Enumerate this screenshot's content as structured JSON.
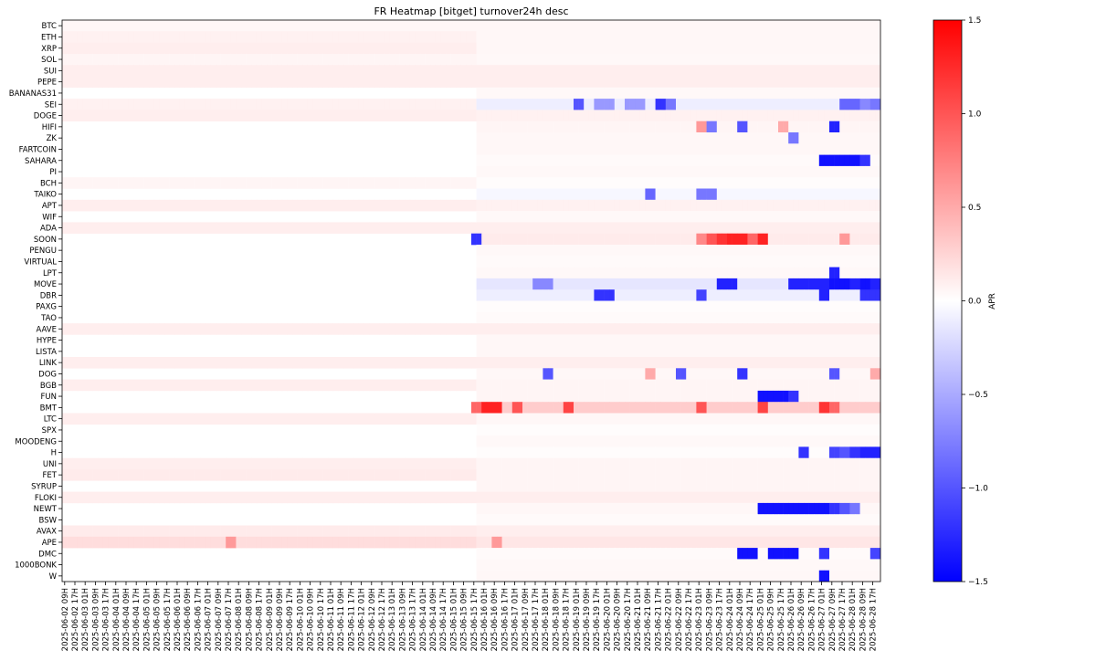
{
  "chart_data": {
    "type": "heatmap",
    "title": "FR Heatmap [bitget] turnover24h desc",
    "colorbar_label": "APR",
    "colorbar_ticks": [
      "1.5",
      "1.0",
      "0.5",
      "0.0",
      "−0.5",
      "−1.0",
      "−1.5"
    ],
    "value_range": [
      -1.5,
      1.5
    ],
    "colormap": "bwr",
    "colors": {
      "low": "#0000ff",
      "mid": "#ffffff",
      "high": "#ff0000"
    },
    "rows": [
      "BTC",
      "ETH",
      "XRP",
      "SOL",
      "SUI",
      "PEPE",
      "BANANAS31",
      "SEI",
      "DOGE",
      "HIFI",
      "ZK",
      "FARTCOIN",
      "SAHARA",
      "PI",
      "BCH",
      "TAIKO",
      "APT",
      "WIF",
      "ADA",
      "SOON",
      "PENGU",
      "VIRTUAL",
      "LPT",
      "MOVE",
      "DBR",
      "PAXG",
      "TAO",
      "AAVE",
      "HYPE",
      "LISTA",
      "LINK",
      "DOG",
      "BGB",
      "FUN",
      "BMT",
      "LTC",
      "SPX",
      "MOODENG",
      "H",
      "UNI",
      "FET",
      "SYRUP",
      "FLOKI",
      "NEWT",
      "BSW",
      "AVAX",
      "APE",
      "DMC",
      "1000BONK",
      "W"
    ],
    "x_tick_labels": [
      "2025-06-02 09H",
      "2025-06-02 17H",
      "2025-06-03 01H",
      "2025-06-03 09H",
      "2025-06-03 17H",
      "2025-06-04 01H",
      "2025-06-04 09H",
      "2025-06-04 17H",
      "2025-06-05 01H",
      "2025-06-05 09H",
      "2025-06-05 17H",
      "2025-06-06 01H",
      "2025-06-06 09H",
      "2025-06-06 17H",
      "2025-06-07 01H",
      "2025-06-07 09H",
      "2025-06-07 17H",
      "2025-06-08 01H",
      "2025-06-08 09H",
      "2025-06-08 17H",
      "2025-06-09 01H",
      "2025-06-09 09H",
      "2025-06-09 17H",
      "2025-06-10 01H",
      "2025-06-10 09H",
      "2025-06-10 17H",
      "2025-06-11 01H",
      "2025-06-11 09H",
      "2025-06-11 17H",
      "2025-06-12 01H",
      "2025-06-12 09H",
      "2025-06-12 17H",
      "2025-06-13 01H",
      "2025-06-13 09H",
      "2025-06-13 17H",
      "2025-06-14 01H",
      "2025-06-14 09H",
      "2025-06-14 17H",
      "2025-06-15 01H",
      "2025-06-15 09H",
      "2025-06-15 17H",
      "2025-06-16 01H",
      "2025-06-16 09H",
      "2025-06-16 17H",
      "2025-06-17 01H",
      "2025-06-17 09H",
      "2025-06-17 17H",
      "2025-06-18 01H",
      "2025-06-18 09H",
      "2025-06-18 17H",
      "2025-06-19 01H",
      "2025-06-19 09H",
      "2025-06-19 17H",
      "2025-06-20 01H",
      "2025-06-20 09H",
      "2025-06-20 17H",
      "2025-06-21 01H",
      "2025-06-21 09H",
      "2025-06-21 17H",
      "2025-06-22 01H",
      "2025-06-22 09H",
      "2025-06-22 17H",
      "2025-06-23 01H",
      "2025-06-23 09H",
      "2025-06-23 17H",
      "2025-06-24 01H",
      "2025-06-24 09H",
      "2025-06-24 17H",
      "2025-06-25 01H",
      "2025-06-25 09H",
      "2025-06-25 17H",
      "2025-06-26 01H",
      "2025-06-26 09H",
      "2025-06-26 17H",
      "2025-06-27 01H",
      "2025-06-27 09H",
      "2025-06-27 17H",
      "2025-06-28 01H",
      "2025-06-28 09H",
      "2025-06-28 17H"
    ],
    "row_profiles": [
      {
        "row": "BTC",
        "early": 0.05,
        "late": 0.05
      },
      {
        "row": "ETH",
        "early": 0.08,
        "late": 0.05
      },
      {
        "row": "XRP",
        "early": 0.1,
        "late": 0.05
      },
      {
        "row": "SOL",
        "early": 0.06,
        "late": 0.04
      },
      {
        "row": "SUI",
        "early": 0.1,
        "late": 0.1
      },
      {
        "row": "PEPE",
        "early": 0.1,
        "late": 0.1
      },
      {
        "row": "BANANAS31",
        "early": null,
        "late": 0.04
      },
      {
        "row": "SEI",
        "early": 0.08,
        "late": -0.1
      },
      {
        "row": "DOGE",
        "early": 0.1,
        "late": 0.08
      },
      {
        "row": "HIFI",
        "early": null,
        "late": 0.06
      },
      {
        "row": "ZK",
        "early": null,
        "late": 0.05
      },
      {
        "row": "FARTCOIN",
        "early": null,
        "late": 0.05
      },
      {
        "row": "SAHARA",
        "early": null,
        "late": 0.03
      },
      {
        "row": "PI",
        "early": null,
        "late": 0.04
      },
      {
        "row": "BCH",
        "early": 0.06,
        "late": 0.02
      },
      {
        "row": "TAIKO",
        "early": null,
        "late": -0.05
      },
      {
        "row": "APT",
        "early": 0.1,
        "late": 0.08
      },
      {
        "row": "WIF",
        "early": null,
        "late": 0.04
      },
      {
        "row": "ADA",
        "early": 0.1,
        "late": 0.1
      },
      {
        "row": "SOON",
        "early": null,
        "late": 0.12
      },
      {
        "row": "PENGU",
        "early": null,
        "late": 0.04
      },
      {
        "row": "VIRTUAL",
        "early": null,
        "late": 0.03
      },
      {
        "row": "LPT",
        "early": null,
        "late": 0.04
      },
      {
        "row": "MOVE",
        "early": null,
        "late": -0.15
      },
      {
        "row": "DBR",
        "early": null,
        "late": -0.1
      },
      {
        "row": "PAXG",
        "early": null,
        "late": 0.02
      },
      {
        "row": "TAO",
        "early": null,
        "late": 0.03
      },
      {
        "row": "AAVE",
        "early": 0.1,
        "late": 0.1
      },
      {
        "row": "HYPE",
        "early": null,
        "late": 0.05
      },
      {
        "row": "LISTA",
        "early": null,
        "late": 0.05
      },
      {
        "row": "LINK",
        "early": 0.1,
        "late": 0.1
      },
      {
        "row": "DOG",
        "early": null,
        "late": 0.05
      },
      {
        "row": "BGB",
        "early": 0.1,
        "late": 0.06
      },
      {
        "row": "FUN",
        "early": null,
        "late": 0.06
      },
      {
        "row": "BMT",
        "early": null,
        "late": 0.3
      },
      {
        "row": "LTC",
        "early": 0.1,
        "late": 0.05
      },
      {
        "row": "SPX",
        "early": null,
        "late": 0.02
      },
      {
        "row": "MOODENG",
        "early": null,
        "late": 0.04
      },
      {
        "row": "H",
        "early": null,
        "late": 0.02
      },
      {
        "row": "UNI",
        "early": 0.1,
        "late": 0.06
      },
      {
        "row": "FET",
        "early": 0.12,
        "late": 0.06
      },
      {
        "row": "SYRUP",
        "early": null,
        "late": 0.06
      },
      {
        "row": "FLOKI",
        "early": 0.1,
        "late": 0.1
      },
      {
        "row": "NEWT",
        "early": null,
        "late": 0.05
      },
      {
        "row": "BSW",
        "early": null,
        "late": 0.03
      },
      {
        "row": "AVAX",
        "early": 0.12,
        "late": 0.1
      },
      {
        "row": "APE",
        "early": 0.2,
        "late": 0.15
      },
      {
        "row": "DMC",
        "early": null,
        "late": 0.03
      },
      {
        "row": "1000BONK",
        "early": null,
        "late": 0.04
      },
      {
        "row": "W",
        "early": null,
        "late": 0.05
      }
    ],
    "highlights": [
      {
        "row": "SEI",
        "col": 50,
        "value": -1.0
      },
      {
        "row": "SEI",
        "col": 52,
        "value": -0.6
      },
      {
        "row": "SEI",
        "col": 53,
        "value": -0.6
      },
      {
        "row": "SEI",
        "col": 55,
        "value": -0.6
      },
      {
        "row": "SEI",
        "col": 56,
        "value": -0.6
      },
      {
        "row": "SEI",
        "col": 58,
        "value": -1.2
      },
      {
        "row": "SEI",
        "col": 59,
        "value": -0.8
      },
      {
        "row": "SEI",
        "col": 76,
        "value": -0.9
      },
      {
        "row": "SEI",
        "col": 77,
        "value": -0.9
      },
      {
        "row": "SEI",
        "col": 78,
        "value": -0.7
      },
      {
        "row": "SEI",
        "col": 79,
        "value": -0.8
      },
      {
        "row": "HIFI",
        "col": 62,
        "value": 0.6
      },
      {
        "row": "HIFI",
        "col": 63,
        "value": -0.8
      },
      {
        "row": "HIFI",
        "col": 66,
        "value": -1.0
      },
      {
        "row": "HIFI",
        "col": 70,
        "value": 0.5
      },
      {
        "row": "HIFI",
        "col": 75,
        "value": -1.3
      },
      {
        "row": "ZK",
        "col": 71,
        "value": -0.8
      },
      {
        "row": "SAHARA",
        "col": 74,
        "value": -1.4
      },
      {
        "row": "SAHARA",
        "col": 75,
        "value": -1.4
      },
      {
        "row": "SAHARA",
        "col": 76,
        "value": -1.4
      },
      {
        "row": "SAHARA",
        "col": 77,
        "value": -1.4
      },
      {
        "row": "SAHARA",
        "col": 78,
        "value": -1.2
      },
      {
        "row": "TAIKO",
        "col": 57,
        "value": -0.9
      },
      {
        "row": "TAIKO",
        "col": 62,
        "value": -0.8
      },
      {
        "row": "TAIKO",
        "col": 63,
        "value": -0.8
      },
      {
        "row": "SOON",
        "col": 40,
        "value": -1.2
      },
      {
        "row": "SOON",
        "col": 62,
        "value": 0.7
      },
      {
        "row": "SOON",
        "col": 63,
        "value": 1.0
      },
      {
        "row": "SOON",
        "col": 64,
        "value": 1.2
      },
      {
        "row": "SOON",
        "col": 65,
        "value": 1.3
      },
      {
        "row": "SOON",
        "col": 66,
        "value": 1.3
      },
      {
        "row": "SOON",
        "col": 67,
        "value": 0.9
      },
      {
        "row": "SOON",
        "col": 68,
        "value": 1.3
      },
      {
        "row": "SOON",
        "col": 76,
        "value": 0.6
      },
      {
        "row": "LPT",
        "col": 75,
        "value": -1.3
      },
      {
        "row": "MOVE",
        "col": 46,
        "value": -0.7
      },
      {
        "row": "MOVE",
        "col": 47,
        "value": -0.7
      },
      {
        "row": "MOVE",
        "col": 64,
        "value": -1.3
      },
      {
        "row": "MOVE",
        "col": 65,
        "value": -1.3
      },
      {
        "row": "MOVE",
        "col": 71,
        "value": -1.3
      },
      {
        "row": "MOVE",
        "col": 72,
        "value": -1.3
      },
      {
        "row": "MOVE",
        "col": 73,
        "value": -1.3
      },
      {
        "row": "MOVE",
        "col": 74,
        "value": -1.3
      },
      {
        "row": "MOVE",
        "col": 75,
        "value": -1.4
      },
      {
        "row": "MOVE",
        "col": 76,
        "value": -1.4
      },
      {
        "row": "MOVE",
        "col": 77,
        "value": -1.3
      },
      {
        "row": "MOVE",
        "col": 78,
        "value": -1.4
      },
      {
        "row": "MOVE",
        "col": 79,
        "value": -1.3
      },
      {
        "row": "DBR",
        "col": 52,
        "value": -1.2
      },
      {
        "row": "DBR",
        "col": 53,
        "value": -1.2
      },
      {
        "row": "DBR",
        "col": 62,
        "value": -1.1
      },
      {
        "row": "DBR",
        "col": 74,
        "value": -1.3
      },
      {
        "row": "DBR",
        "col": 78,
        "value": -1.2
      },
      {
        "row": "DBR",
        "col": 79,
        "value": -1.2
      },
      {
        "row": "DOG",
        "col": 47,
        "value": -1.0
      },
      {
        "row": "DOG",
        "col": 57,
        "value": 0.5
      },
      {
        "row": "DOG",
        "col": 60,
        "value": -1.0
      },
      {
        "row": "DOG",
        "col": 66,
        "value": -1.2
      },
      {
        "row": "DOG",
        "col": 75,
        "value": -1.0
      },
      {
        "row": "DOG",
        "col": 79,
        "value": 0.5
      },
      {
        "row": "FUN",
        "col": 68,
        "value": -1.4
      },
      {
        "row": "FUN",
        "col": 69,
        "value": -1.4
      },
      {
        "row": "FUN",
        "col": 70,
        "value": -1.4
      },
      {
        "row": "FUN",
        "col": 71,
        "value": -1.2
      },
      {
        "row": "BMT",
        "col": 40,
        "value": 0.9
      },
      {
        "row": "BMT",
        "col": 41,
        "value": 1.3
      },
      {
        "row": "BMT",
        "col": 42,
        "value": 1.3
      },
      {
        "row": "BMT",
        "col": 44,
        "value": 1.0
      },
      {
        "row": "BMT",
        "col": 49,
        "value": 1.1
      },
      {
        "row": "BMT",
        "col": 62,
        "value": 1.0
      },
      {
        "row": "BMT",
        "col": 68,
        "value": 1.1
      },
      {
        "row": "BMT",
        "col": 74,
        "value": 1.2
      },
      {
        "row": "BMT",
        "col": 75,
        "value": 0.9
      },
      {
        "row": "H",
        "col": 72,
        "value": -1.2
      },
      {
        "row": "H",
        "col": 75,
        "value": -1.1
      },
      {
        "row": "H",
        "col": 76,
        "value": -1.0
      },
      {
        "row": "H",
        "col": 77,
        "value": -1.2
      },
      {
        "row": "H",
        "col": 78,
        "value": -1.3
      },
      {
        "row": "H",
        "col": 79,
        "value": -1.3
      },
      {
        "row": "NEWT",
        "col": 68,
        "value": -1.4
      },
      {
        "row": "NEWT",
        "col": 69,
        "value": -1.4
      },
      {
        "row": "NEWT",
        "col": 70,
        "value": -1.4
      },
      {
        "row": "NEWT",
        "col": 71,
        "value": -1.4
      },
      {
        "row": "NEWT",
        "col": 72,
        "value": -1.4
      },
      {
        "row": "NEWT",
        "col": 73,
        "value": -1.4
      },
      {
        "row": "NEWT",
        "col": 74,
        "value": -1.4
      },
      {
        "row": "NEWT",
        "col": 75,
        "value": -1.2
      },
      {
        "row": "NEWT",
        "col": 76,
        "value": -1.0
      },
      {
        "row": "NEWT",
        "col": 77,
        "value": -0.8
      },
      {
        "row": "APE",
        "col": 16,
        "value": 0.6
      },
      {
        "row": "APE",
        "col": 42,
        "value": 0.6
      },
      {
        "row": "DMC",
        "col": 66,
        "value": -1.4
      },
      {
        "row": "DMC",
        "col": 67,
        "value": -1.4
      },
      {
        "row": "DMC",
        "col": 69,
        "value": -1.4
      },
      {
        "row": "DMC",
        "col": 70,
        "value": -1.4
      },
      {
        "row": "DMC",
        "col": 71,
        "value": -1.4
      },
      {
        "row": "DMC",
        "col": 74,
        "value": -1.2
      },
      {
        "row": "DMC",
        "col": 79,
        "value": -1.1
      },
      {
        "row": "W",
        "col": 74,
        "value": -1.4
      }
    ]
  }
}
